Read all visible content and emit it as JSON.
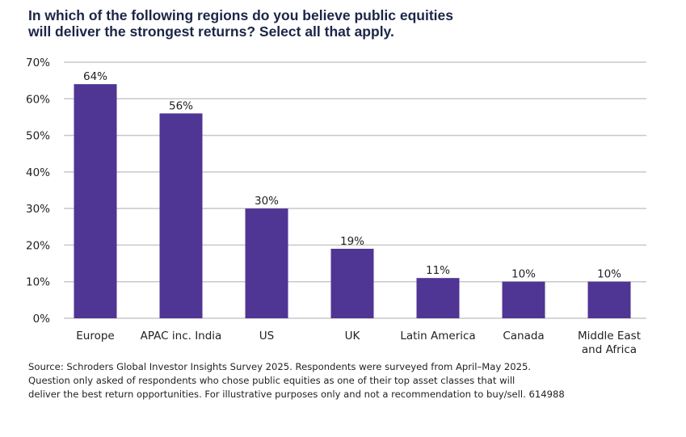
{
  "title_lines": [
    "In which of the following regions do you believe public equities",
    "will deliver the strongest returns? Select all that apply."
  ],
  "source_lines": [
    "Source: Schroders Global Investor Insights Survey 2025. Respondents were surveyed from April–May 2025.",
    "Question only asked of respondents who chose public equities as one of their top asset classes that will",
    "deliver the best return opportunities. For illustrative purposes only and not a recommendation to buy/sell. 614988"
  ],
  "colors": {
    "bar": "#4f3594",
    "grid": "#c8c8c8",
    "title": "#1b2647",
    "text": "#222222"
  },
  "chart_data": {
    "type": "bar",
    "title": "In which of the following regions do you believe public equities will deliver the strongest returns? Select all that apply.",
    "xlabel": "",
    "ylabel": "",
    "categories": [
      [
        "Europe"
      ],
      [
        "APAC inc. India"
      ],
      [
        "US"
      ],
      [
        "UK"
      ],
      [
        "Latin America"
      ],
      [
        "Canada"
      ],
      [
        "Middle East",
        "and Africa"
      ]
    ],
    "values": [
      64,
      56,
      30,
      19,
      11,
      10,
      10
    ],
    "data_labels": [
      "64%",
      "56%",
      "30%",
      "19%",
      "11%",
      "10%",
      "10%"
    ],
    "ylim": [
      0,
      70
    ],
    "yticks": [
      0,
      10,
      20,
      30,
      40,
      50,
      60,
      70
    ],
    "ytick_labels": [
      "0%",
      "10%",
      "20%",
      "30%",
      "40%",
      "50%",
      "60%",
      "70%"
    ],
    "grid": true,
    "legend": "none"
  }
}
